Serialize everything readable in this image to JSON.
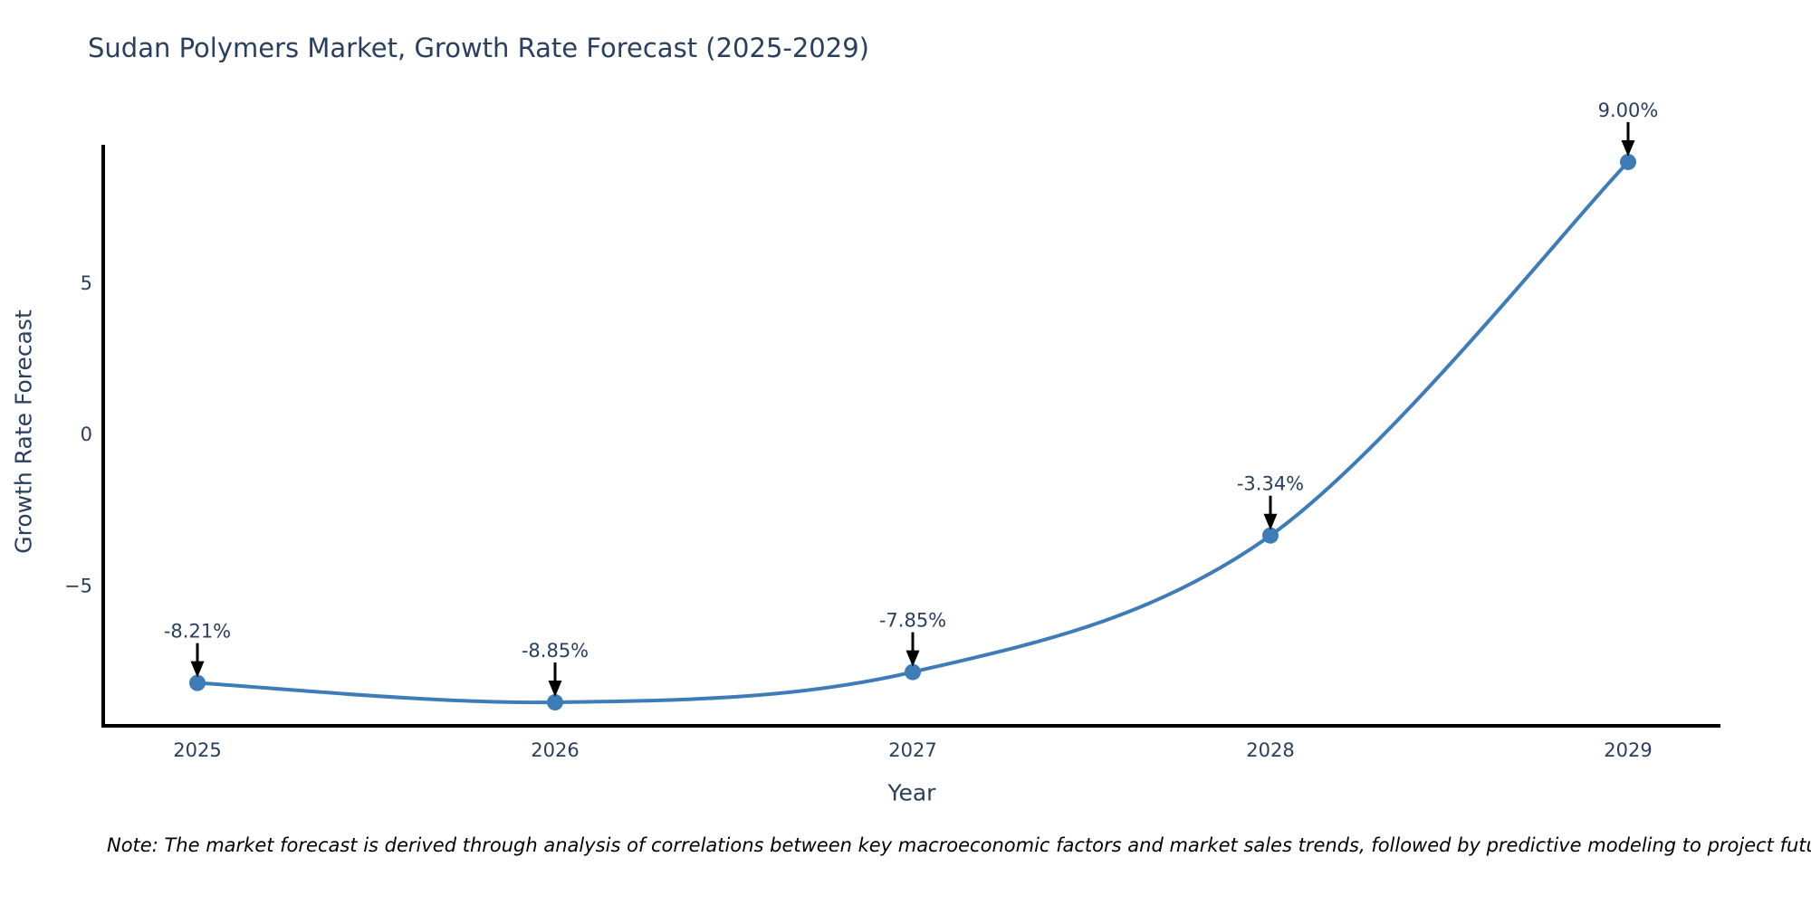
{
  "chart": {
    "title": "Sudan Polymers Market, Growth Rate Forecast (2025-2029)",
    "xlabel": "Year",
    "ylabel": "Growth Rate Forecast",
    "note": "Note: The market forecast is derived through analysis of correlations between key macroeconomic factors and market sales trends, followed by predictive modeling to project future sales"
  },
  "chart_data": {
    "type": "line",
    "line_shape": "spline",
    "title": "Sudan Polymers Market, Growth Rate Forecast (2025-2029)",
    "xlabel": "Year",
    "ylabel": "Growth Rate Forecast",
    "categories": [
      "2025",
      "2026",
      "2027",
      "2028",
      "2029"
    ],
    "values": [
      -8.21,
      -8.85,
      -7.85,
      -3.34,
      9.0
    ],
    "point_labels": [
      "-8.21%",
      "-8.85%",
      "-7.85%",
      "-3.34%",
      "9.00%"
    ],
    "yticks": [
      5,
      0,
      -5
    ],
    "ylim": [
      -9.6,
      9.6
    ],
    "grid": false,
    "legend": false,
    "annotation_note": "Note: The market forecast is derived through analysis of correlations between key macroeconomic factors and market sales trends, followed by predictive modeling to project future sales",
    "colors": {
      "line": "#3d7cb8",
      "marker": "#3d7cb8",
      "annotation_text": "#2a3f5f",
      "annotation_arrow": "#000000",
      "axis_line": "#000000",
      "tick_text": "#2a3f5f",
      "title_text": "#2a3f5f",
      "note_text": "#000000"
    }
  }
}
